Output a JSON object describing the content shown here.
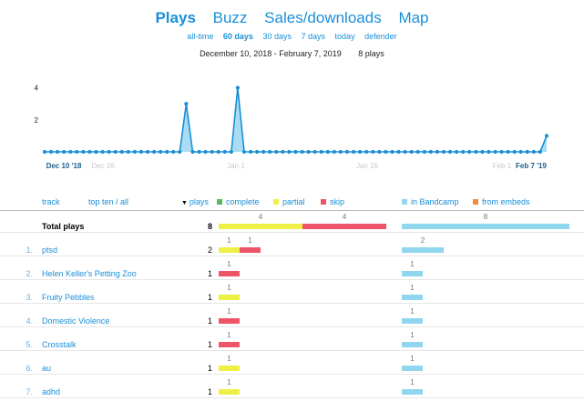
{
  "nav": {
    "tabs": [
      {
        "label": "Plays",
        "active": true
      },
      {
        "label": "Buzz",
        "active": false
      },
      {
        "label": "Sales/downloads",
        "active": false
      },
      {
        "label": "Map",
        "active": false
      }
    ],
    "ranges": [
      {
        "label": "all-time",
        "active": false
      },
      {
        "label": "60 days",
        "active": true
      },
      {
        "label": "30 days",
        "active": false
      },
      {
        "label": "7 days",
        "active": false
      },
      {
        "label": "today",
        "active": false
      },
      {
        "label": "defender",
        "active": false
      }
    ]
  },
  "summary": {
    "date_range": "December 10, 2018 - February 7, 2019",
    "plays": "8 plays"
  },
  "chart_data": {
    "type": "area",
    "ylim": [
      0,
      4.2
    ],
    "yticks": [
      "4",
      "2"
    ],
    "x_labels": [
      {
        "label": "Dec 10 '18",
        "bold": true
      },
      {
        "label": "Dec 16",
        "bold": false
      },
      {
        "label": "Jan 1",
        "bold": false
      },
      {
        "label": "Jan 16",
        "bold": false
      },
      {
        "label": "Feb 1",
        "bold": false
      },
      {
        "label": "Feb 7 '19",
        "bold": true
      }
    ],
    "values": [
      0,
      0,
      0,
      0,
      0,
      0,
      0,
      0,
      0,
      0,
      0,
      0,
      0,
      0,
      0,
      0,
      0,
      0,
      0,
      0,
      0,
      0,
      3,
      0,
      0,
      0,
      0,
      0,
      0,
      0,
      4,
      0,
      0,
      0,
      0,
      0,
      0,
      0,
      0,
      0,
      0,
      0,
      0,
      0,
      0,
      0,
      0,
      0,
      0,
      0,
      0,
      0,
      0,
      0,
      0,
      0,
      0,
      0,
      0,
      0,
      0,
      0,
      0,
      0,
      0,
      0,
      0,
      0,
      0,
      0,
      0,
      0,
      0,
      0,
      0,
      0,
      0,
      0,
      1
    ]
  },
  "colors": {
    "accent": "#1a8fd6",
    "complete": "#5cb85c",
    "partial": "#eef046",
    "skip": "#ee5468",
    "in_bandcamp": "#8fd6ee",
    "from_embeds": "#f08a3c"
  },
  "table": {
    "headers": {
      "track": "track",
      "top_ten": "top ten / all",
      "plays": "plays",
      "complete": "complete",
      "partial": "partial",
      "skip": "skip",
      "in_bandcamp": "in Bandcamp",
      "from_embeds": "from embeds"
    },
    "max_plays": 8,
    "total": {
      "name": "Total plays",
      "plays": 8,
      "partial": 4,
      "skip": 4,
      "partial_label": "4",
      "skip_label": "4",
      "bandcamp": 8,
      "bandcamp_label": "8"
    },
    "rows": [
      {
        "num": "1.",
        "name": "ptsd",
        "plays": 2,
        "partial": 1,
        "skip": 1,
        "partial_label": "1",
        "skip_label": "1",
        "bandcamp": 2,
        "bandcamp_label": "2"
      },
      {
        "num": "2.",
        "name": "Helen Keller's Petting Zoo",
        "plays": 1,
        "partial": 0,
        "skip": 1,
        "partial_label": "",
        "skip_label": "1",
        "bandcamp": 1,
        "bandcamp_label": "1"
      },
      {
        "num": "3.",
        "name": "Fruity Pebbles",
        "plays": 1,
        "partial": 1,
        "skip": 0,
        "partial_label": "1",
        "skip_label": "",
        "bandcamp": 1,
        "bandcamp_label": "1"
      },
      {
        "num": "4.",
        "name": "Domestic Violence",
        "plays": 1,
        "partial": 0,
        "skip": 1,
        "partial_label": "",
        "skip_label": "1",
        "bandcamp": 1,
        "bandcamp_label": "1"
      },
      {
        "num": "5.",
        "name": "Crosstalk",
        "plays": 1,
        "partial": 0,
        "skip": 1,
        "partial_label": "",
        "skip_label": "1",
        "bandcamp": 1,
        "bandcamp_label": "1"
      },
      {
        "num": "6.",
        "name": "au",
        "plays": 1,
        "partial": 1,
        "skip": 0,
        "partial_label": "1",
        "skip_label": "",
        "bandcamp": 1,
        "bandcamp_label": "1"
      },
      {
        "num": "7.",
        "name": "adhd",
        "plays": 1,
        "partial": 1,
        "skip": 0,
        "partial_label": "1",
        "skip_label": "",
        "bandcamp": 1,
        "bandcamp_label": "1"
      }
    ]
  }
}
